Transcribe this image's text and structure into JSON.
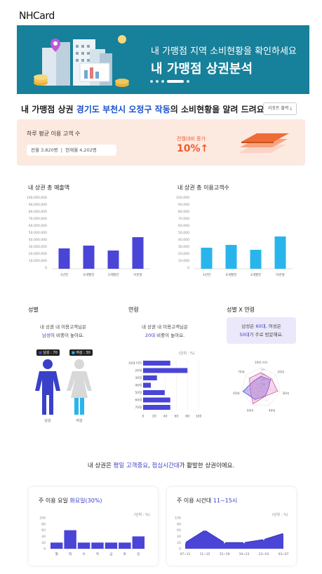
{
  "brand": {
    "logo_prefix": "NH",
    "logo_suffix": "Card"
  },
  "banner": {
    "line1": "내 가맹점 지역 소비현황을 확인하세요",
    "line2": "내 가맹점 상권분석"
  },
  "headline": {
    "prefix": "내 가맹점 상권 ",
    "region": "경기도 부천시 오정구 작동",
    "suffix": "의 소비현황을 알려 드려요."
  },
  "report_button": {
    "label": "리포트 출력"
  },
  "daily": {
    "label": "하루 평균 이용 고객 수",
    "prev_label": "전월",
    "prev_value": "3,820명",
    "curr_label": "현재월",
    "curr_value": "4,202명",
    "change_label": "전월대비 증가",
    "change_value": "10%",
    "change_arrow": "↑"
  },
  "colors": {
    "bar_purple": "#4a45d6",
    "bar_blue": "#29b5ec",
    "accent_orange": "#ef5a2a",
    "banner": "#17809a"
  },
  "sales_chart": {
    "title": "내 상권 총 매출액",
    "yticks": [
      "100,000,000",
      "90,000,000",
      "80,000,000",
      "70,000,000",
      "60,000,000",
      "50,000,000",
      "40,000,000",
      "30,000,000",
      "20,000,000",
      "10,000,000",
      "0"
    ]
  },
  "customers_chart": {
    "title": "내 상권 총 이용고객수",
    "yticks": [
      "100,000",
      "90,000",
      "80,000",
      "70,000",
      "60,000",
      "50,000",
      "40,000",
      "30,000",
      "20,000",
      "10,000",
      "0"
    ]
  },
  "gender": {
    "title": "성별",
    "desc1": "내 상권 내 이용고객님은",
    "desc_hl": "남성",
    "desc2": "이 비중이 높아요.",
    "male_badge": "남성 : 70",
    "female_badge": "여성 : 30",
    "male_label": "남성",
    "female_label": "여성"
  },
  "age": {
    "title": "연령",
    "desc1": "내 상권 내 이용고객님은",
    "desc_hl": "20대",
    "desc2": " 비중이 높아요.",
    "unit": "(단위 : %)"
  },
  "gender_age": {
    "title": "성별 X 연령",
    "line1_a": "남성은 ",
    "line1_hl": "60대",
    "line1_b": ", 여성은",
    "line2_hl": "50대",
    "line2_b": "가 주로 방문해요.",
    "axes": [
      "10대 이하",
      "20대",
      "30대",
      "40대",
      "50대",
      "60대",
      "70대"
    ],
    "rings": [
      "80",
      "60",
      "40",
      "20"
    ]
  },
  "summary": {
    "prefix": "내 상권은 ",
    "hl1": "평일 고객중요",
    "mid": ", ",
    "hl2": "점심시간대",
    "suffix": "가 활발한 상권이에요."
  },
  "weekday": {
    "title_a": "주 이용 요일 ",
    "title_hl": "화요일(30%)",
    "unit": "(단위 : %)"
  },
  "timeband": {
    "title_a": "주 이용 시간대 ",
    "title_hl": "11~15시",
    "unit": "(단위 : %)"
  },
  "chart_data": [
    {
      "type": "bar",
      "title": "내 상권 총 매출액",
      "categories": [
        "1년전",
        "6개월전",
        "3개월전",
        "이번달"
      ],
      "values": [
        29000000,
        33000000,
        26000000,
        45000000
      ],
      "ylim": [
        0,
        100000000
      ]
    },
    {
      "type": "bar",
      "title": "내 상권 총 이용고객수",
      "categories": [
        "1년전",
        "6개월전",
        "3개월전",
        "이번달"
      ],
      "values": [
        30000,
        34000,
        27000,
        46000
      ],
      "ylim": [
        0,
        100000
      ]
    },
    {
      "type": "bar",
      "title": "연령",
      "orientation": "horizontal",
      "categories": [
        "10대 이하",
        "20대",
        "30대",
        "40대",
        "50대",
        "60대",
        "70대"
      ],
      "values": [
        49,
        80,
        25,
        14,
        39,
        49,
        49
      ],
      "xlim": [
        0,
        100
      ],
      "xticks": [
        "0",
        "20",
        "40",
        "60",
        "80",
        "100"
      ]
    },
    {
      "type": "radar",
      "title": "성별 X 연령",
      "axes": [
        "10대 이하",
        "20대",
        "30대",
        "40대",
        "50대",
        "60대",
        "70대"
      ],
      "series": [
        {
          "name": "남성",
          "values": [
            45,
            50,
            30,
            40,
            55,
            75,
            40
          ]
        },
        {
          "name": "여성",
          "values": [
            60,
            55,
            70,
            40,
            75,
            45,
            60
          ]
        }
      ],
      "rmax": 80
    },
    {
      "type": "bar",
      "title": "주 이용 요일",
      "categories": [
        "월",
        "화",
        "수",
        "목",
        "금",
        "토",
        "일"
      ],
      "values": [
        20,
        60,
        20,
        20,
        20,
        20,
        40
      ],
      "ylim": [
        0,
        100
      ],
      "yticks": [
        "100",
        "80",
        "60",
        "40",
        "20",
        "0"
      ]
    },
    {
      "type": "area",
      "title": "주 이용 시간대",
      "categories": [
        "07~11",
        "11~15",
        "15~19",
        "19~23",
        "23~03",
        "03~07"
      ],
      "values": [
        20,
        60,
        20,
        20,
        30,
        50
      ],
      "ylim": [
        0,
        100
      ],
      "yticks": [
        "100",
        "80",
        "60",
        "40",
        "20",
        "0"
      ]
    }
  ]
}
